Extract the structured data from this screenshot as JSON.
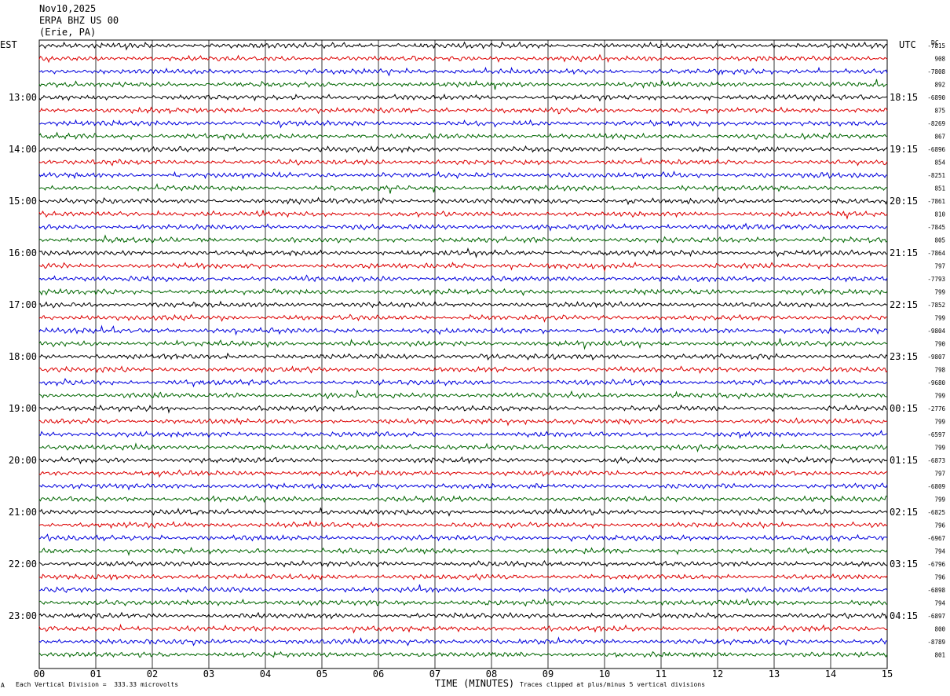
{
  "header": {
    "date": "Nov10,2025",
    "station": "ERPA BHZ US 00",
    "location": "(Erie, PA)"
  },
  "left_zone": "EST",
  "right_zone": "UTC",
  "dc_label": "DC",
  "xlabel": "TIME (MINUTES)",
  "footer": {
    "scale": "Each Vertical Division =  333.33 microvolts",
    "clip": "Traces clipped at plus/minus 5 vertical divisions",
    "marker": "A"
  },
  "colors": {
    "trace_cycle": [
      "#000000",
      "#dd0000",
      "#0000dd",
      "#006600"
    ],
    "grid": "#000000",
    "background": "#ffffff"
  },
  "chart_data": {
    "type": "line",
    "title": "Nov10,2025 ERPA BHZ US 00 (Erie, PA)",
    "xlabel": "TIME (MINUTES)",
    "xlim": [
      0,
      15
    ],
    "x_ticks": [
      "00",
      "01",
      "02",
      "03",
      "04",
      "05",
      "06",
      "07",
      "08",
      "09",
      "10",
      "11",
      "12",
      "13",
      "14",
      "15"
    ],
    "trace_count": 48,
    "trace_interval_minutes": 15,
    "left_hour_labels": [
      "13:00",
      "14:00",
      "15:00",
      "16:00",
      "17:00",
      "18:00",
      "19:00",
      "20:00",
      "21:00",
      "22:00",
      "23:00"
    ],
    "right_hour_labels": [
      "18:15",
      "19:15",
      "20:15",
      "21:15",
      "22:15",
      "23:15",
      "00:15",
      "01:15",
      "02:15",
      "03:15",
      "04:15"
    ],
    "dc_offsets": [
      "-7815",
      "908",
      "-7808",
      "892",
      "-6890",
      "875",
      "-8269",
      "867",
      "-6896",
      "854",
      "-8251",
      "851",
      "-7861",
      "810",
      "-7845",
      "805",
      "-7864",
      "797",
      "-7793",
      "799",
      "-7852",
      "799",
      "-9804",
      "790",
      "-9807",
      "798",
      "-9680",
      "799",
      "-2776",
      "799",
      "-6597",
      "799",
      "-6873",
      "797",
      "-6809",
      "799",
      "-6825",
      "796",
      "-6967",
      "794",
      "-6796",
      "796",
      "-6898",
      "794",
      "-6897",
      "800",
      "-8789",
      "801"
    ],
    "grid": true,
    "clip_divisions": 5
  }
}
